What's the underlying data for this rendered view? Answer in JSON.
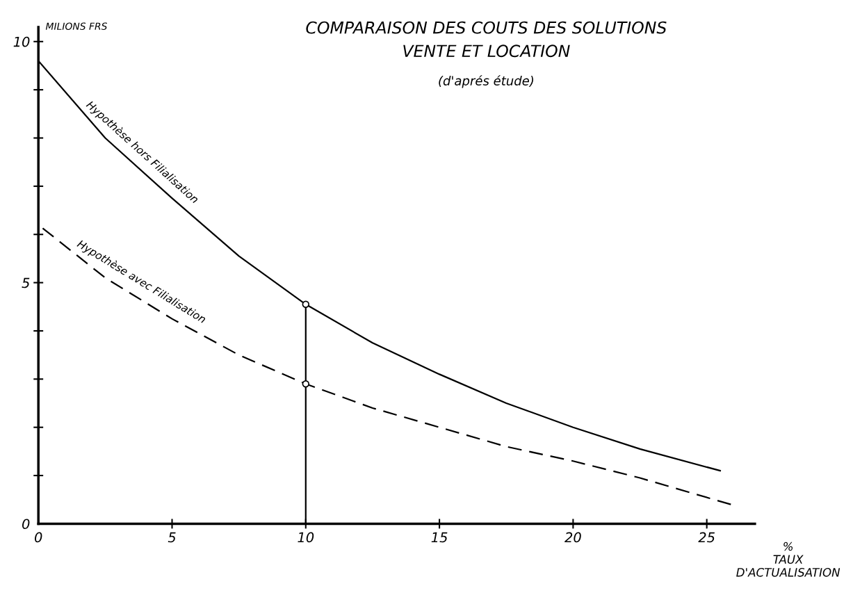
{
  "chart_data": {
    "type": "line",
    "title": "COMPARAISON DES COUTS DES SOLUTIONS\nVENTE ET LOCATION",
    "subtitle": "(d'aprés étude)",
    "xlabel": "%\nTAUX\nD'ACTUALISATION",
    "ylabel": "MILIONS FRS",
    "series": [
      {
        "name": "Hypothèse hors Filialisation",
        "color": "#000000",
        "line_style": "solid",
        "x": [
          0,
          2.5,
          5,
          7.5,
          10,
          12.5,
          15,
          17.5,
          20,
          22.5,
          25.5
        ],
        "values": [
          9.6,
          8.0,
          6.75,
          5.55,
          4.55,
          3.75,
          3.1,
          2.5,
          2.0,
          1.55,
          1.1
        ]
      },
      {
        "name": "Hypothèse avec Filialisation",
        "color": "#000000",
        "line_style": "dashed",
        "x": [
          0,
          2.5,
          5,
          7.5,
          10,
          12.5,
          15,
          17.5,
          20,
          22.5,
          25.9
        ],
        "values": [
          6.2,
          5.1,
          4.25,
          3.5,
          2.9,
          2.4,
          2.0,
          1.6,
          1.3,
          0.95,
          0.4
        ]
      },
      {
        "color": "#000000",
        "line_style": "solid",
        "x": [
          10,
          10
        ],
        "values": [
          0,
          4.55
        ]
      },
      {
        "type": "scatter",
        "color": "#000000",
        "marker": "circle",
        "x": [
          10,
          10
        ],
        "values": [
          4.55,
          2.9
        ]
      }
    ],
    "xlim": [
      0,
      26.8
    ],
    "xticks": [
      0,
      5,
      10,
      15,
      20,
      25
    ],
    "ylim": [
      0,
      10.3
    ],
    "yticks": [
      0,
      {
        "value": 1,
        "label": null
      },
      {
        "value": 2,
        "label": null
      },
      {
        "value": 3,
        "label": null
      },
      {
        "value": 4,
        "label": null
      },
      5,
      {
        "value": 6,
        "label": null
      },
      {
        "value": 7,
        "label": null
      },
      {
        "value": 8,
        "label": null
      },
      {
        "value": 9,
        "label": null
      },
      10
    ],
    "grid": false,
    "legend": false
  }
}
